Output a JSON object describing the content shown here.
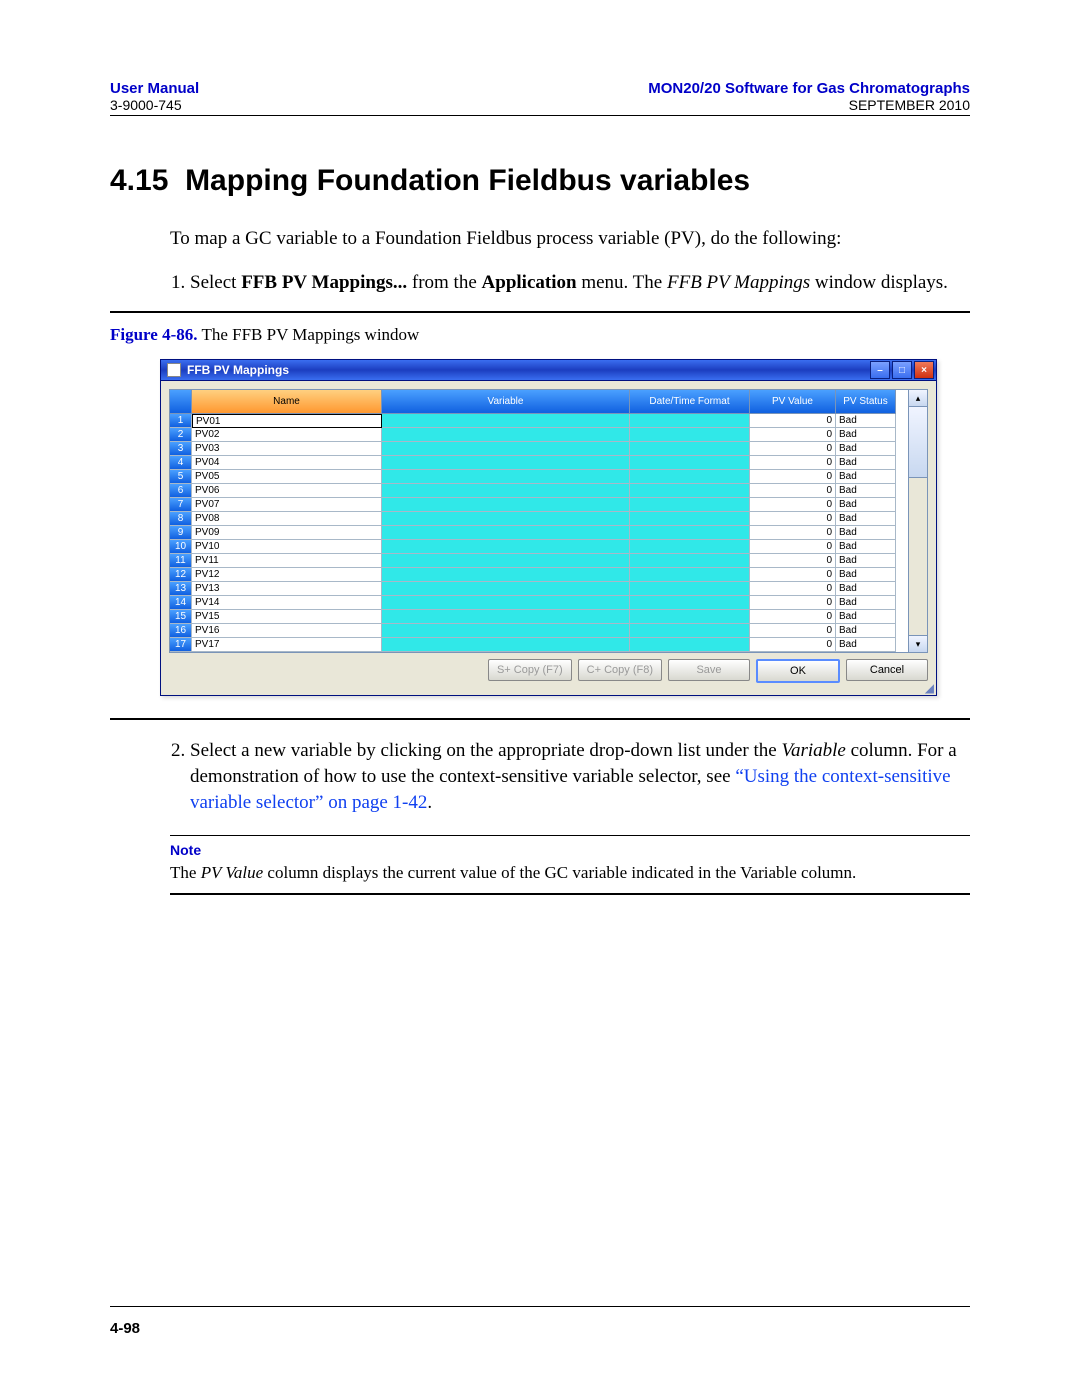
{
  "header": {
    "left_title": "User Manual",
    "left_sub": "3-9000-745",
    "right_title": "MON20/20 Software for Gas Chromatographs",
    "right_sub": "SEPTEMBER 2010"
  },
  "section": {
    "number": "4.15",
    "title": "Mapping Foundation Fieldbus variables",
    "intro": "To map a GC variable to a Foundation Fieldbus process variable (PV), do the following:",
    "step1_pre": "Select ",
    "step1_bold": "FFB PV Mappings...",
    "step1_mid": " from the ",
    "step1_bold2": "Application",
    "step1_post": " menu.  The ",
    "step1_ital": "FFB PV Mappings",
    "step1_end": " window displays.",
    "step2_a": "Select a new variable by clicking on the appropriate drop-down list under the ",
    "step2_ital": "Variable",
    "step2_b": " column.  For a demonstration of how to use the context-sensitive variable selector, see ",
    "step2_link": "“Using the context-sensitive variable selector” on page 1-42",
    "step2_c": "."
  },
  "figure": {
    "label": "Figure 4-86.",
    "caption": "  The FFB PV Mappings window"
  },
  "note": {
    "label": "Note",
    "body_a": "The ",
    "body_ital": "PV Value",
    "body_b": " column displays the current value of the GC variable indicated in the Variable column."
  },
  "page_number": "4-98",
  "window": {
    "title": "FFB PV Mappings",
    "columns": {
      "name": "Name",
      "variable": "Variable",
      "dtf": "Date/Time Format",
      "pvvalue": "PV Value",
      "pvstatus": "PV Status"
    },
    "buttons": {
      "scopyf7": "S+ Copy (F7)",
      "ccopyf8": "C+ Copy (F8)",
      "save": "Save",
      "ok": "OK",
      "cancel": "Cancel"
    },
    "rows": [
      {
        "n": "1",
        "name": "PV01",
        "val": "0",
        "status": "Bad"
      },
      {
        "n": "2",
        "name": "PV02",
        "val": "0",
        "status": "Bad"
      },
      {
        "n": "3",
        "name": "PV03",
        "val": "0",
        "status": "Bad"
      },
      {
        "n": "4",
        "name": "PV04",
        "val": "0",
        "status": "Bad"
      },
      {
        "n": "5",
        "name": "PV05",
        "val": "0",
        "status": "Bad"
      },
      {
        "n": "6",
        "name": "PV06",
        "val": "0",
        "status": "Bad"
      },
      {
        "n": "7",
        "name": "PV07",
        "val": "0",
        "status": "Bad"
      },
      {
        "n": "8",
        "name": "PV08",
        "val": "0",
        "status": "Bad"
      },
      {
        "n": "9",
        "name": "PV09",
        "val": "0",
        "status": "Bad"
      },
      {
        "n": "10",
        "name": "PV10",
        "val": "0",
        "status": "Bad"
      },
      {
        "n": "11",
        "name": "PV11",
        "val": "0",
        "status": "Bad"
      },
      {
        "n": "12",
        "name": "PV12",
        "val": "0",
        "status": "Bad"
      },
      {
        "n": "13",
        "name": "PV13",
        "val": "0",
        "status": "Bad"
      },
      {
        "n": "14",
        "name": "PV14",
        "val": "0",
        "status": "Bad"
      },
      {
        "n": "15",
        "name": "PV15",
        "val": "0",
        "status": "Bad"
      },
      {
        "n": "16",
        "name": "PV16",
        "val": "0",
        "status": "Bad"
      },
      {
        "n": "17",
        "name": "PV17",
        "val": "0",
        "status": "Bad"
      }
    ]
  }
}
